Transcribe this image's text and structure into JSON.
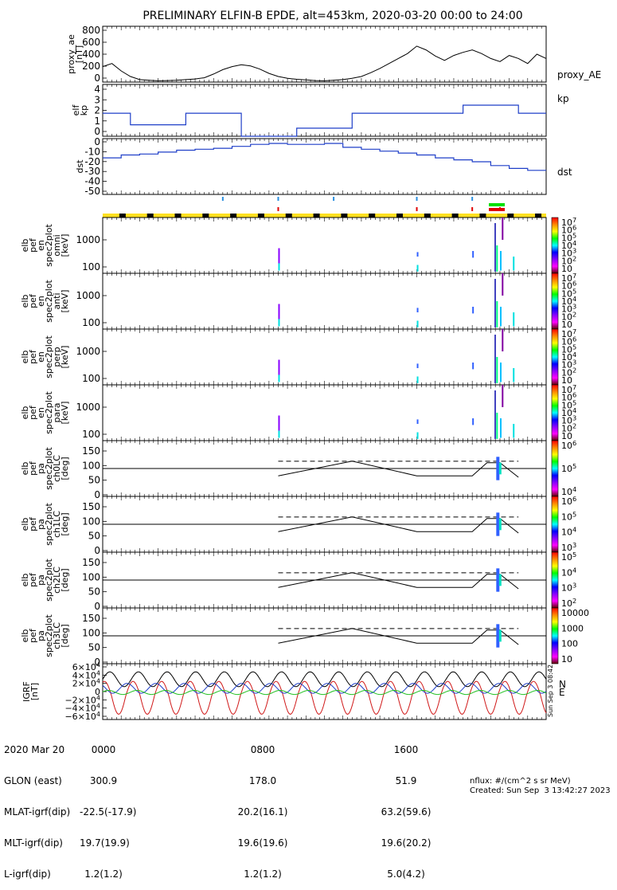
{
  "title": "PRELIMINARY ELFIN-B EPDE, alt=453km, 2020-03-20 00:00 to 24:00",
  "colors": {
    "line_black": "#000000",
    "line_blue": "#1f3fc8",
    "line_red": "#d01818",
    "line_green": "#20c020",
    "bar_yellow": "#ffe020",
    "bar_black": "#000000",
    "marker_blue": "#2a8fe0",
    "marker_red": "#e00000",
    "marker_green": "#00e000"
  },
  "chart_data": [
    {
      "name": "proxy_ae",
      "type": "line",
      "ylabel": "proxy_ae\n[nT]",
      "yticks": [
        "800",
        "600",
        "400",
        "200",
        "0"
      ],
      "ylim": [
        0,
        900
      ],
      "legend": "proxy_AE",
      "x_hours": [
        0,
        0.5,
        1,
        1.5,
        2,
        2.5,
        3,
        3.5,
        4,
        4.5,
        5,
        5.5,
        6,
        6.5,
        7,
        7.5,
        8,
        8.5,
        9,
        9.5,
        10,
        10.5,
        11,
        11.5,
        12,
        12.5,
        13,
        13.5,
        14,
        14.5,
        15,
        15.5,
        16,
        16.5,
        17,
        17.5,
        18,
        18.5,
        19,
        19.5,
        20,
        20.5,
        21,
        21.5,
        22,
        22.5,
        23,
        23.5,
        24
      ],
      "values": [
        250,
        300,
        180,
        90,
        40,
        30,
        20,
        25,
        30,
        40,
        50,
        70,
        130,
        200,
        250,
        280,
        260,
        210,
        140,
        90,
        60,
        45,
        35,
        25,
        20,
        30,
        40,
        60,
        90,
        150,
        220,
        300,
        380,
        460,
        580,
        520,
        420,
        350,
        430,
        480,
        520,
        460,
        380,
        330,
        430,
        380,
        300,
        450,
        380
      ]
    },
    {
      "name": "kp",
      "type": "step",
      "ylabel": "elf\nkp",
      "yticks": [
        "4",
        "3",
        "2",
        "1",
        "0"
      ],
      "ylim": [
        0,
        4.5
      ],
      "legend": "kp",
      "x_hours": [
        0,
        1.5,
        4.5,
        7.5,
        10.5,
        13.5,
        19.5,
        22.5,
        24
      ],
      "values": [
        2,
        1,
        2,
        0,
        0.7,
        2,
        2.7,
        2
      ]
    },
    {
      "name": "dst",
      "type": "step",
      "ylabel": "dst",
      "yticks": [
        "0",
        "-10",
        "-20",
        "-30",
        "-40",
        "-50"
      ],
      "ylim": [
        -55,
        3
      ],
      "legend": "dst",
      "x_hours": [
        0,
        1,
        2,
        3,
        4,
        5,
        6,
        7,
        8,
        9,
        10,
        11,
        12,
        13,
        14,
        15,
        16,
        17,
        18,
        19,
        20,
        21,
        22,
        23,
        24
      ],
      "values": [
        -17,
        -14,
        -13,
        -11,
        -9,
        -8,
        -7,
        -5,
        -3,
        -2,
        -3,
        -3,
        -2,
        -6,
        -8,
        -10,
        -12,
        -14,
        -17,
        -19,
        -21,
        -25,
        -28,
        -30
      ]
    },
    {
      "name": "spec_omni",
      "type": "heatmap",
      "ylabel": "elb\npef\nen\nspec2plot\nomni\n[keV]",
      "yticks": [
        "1000",
        "100"
      ],
      "cbar_label": "nflux",
      "cbar_ticks": [
        "10^7",
        "10^6",
        "10^5",
        "10^4",
        "10^3",
        "10^2",
        "10"
      ]
    },
    {
      "name": "spec_anti",
      "type": "heatmap",
      "ylabel": "elb\npef\nen\nspec2plot\nanti\n[keV]",
      "yticks": [
        "1000",
        "100"
      ],
      "cbar_label": "nflux",
      "cbar_ticks": [
        "10^7",
        "10^6",
        "10^5",
        "10^4",
        "10^3",
        "10^2",
        "10"
      ]
    },
    {
      "name": "spec_perp",
      "type": "heatmap",
      "ylabel": "elb\npef\nen\nspec2plot\nperp\n[keV]",
      "yticks": [
        "1000",
        "100"
      ],
      "cbar_label": "nflux",
      "cbar_ticks": [
        "10^7",
        "10^6",
        "10^5",
        "10^4",
        "10^3",
        "10^2",
        "10"
      ]
    },
    {
      "name": "spec_para",
      "type": "heatmap",
      "ylabel": "elb\npef\nen\nspec2plot\npara\n[keV]",
      "yticks": [
        "1000",
        "100"
      ],
      "cbar_label": "nflux",
      "cbar_ticks": [
        "10^7",
        "10^6",
        "10^5",
        "10^4",
        "10^3",
        "10^2",
        "10"
      ]
    },
    {
      "name": "pa_ch0",
      "type": "heatmap",
      "ylabel": "elb\npef\npa\nspec2plot\nch0LC\n[deg]",
      "yticks": [
        "150",
        "100",
        "50",
        "0"
      ],
      "cbar_label": "nflux",
      "cbar_ticks": [
        "10^6",
        "10^5",
        "10^4"
      ]
    },
    {
      "name": "pa_ch1",
      "type": "heatmap",
      "ylabel": "elb\npef\npa\nspec2plot\nch1LC\n[deg]",
      "yticks": [
        "150",
        "100",
        "50",
        "0"
      ],
      "cbar_label": "nflux",
      "cbar_ticks": [
        "10^6",
        "10^5",
        "10^4",
        "10^3"
      ]
    },
    {
      "name": "pa_ch2",
      "type": "heatmap",
      "ylabel": "elb\npef\npa\nspec2plot\nch2LC\n[deg]",
      "yticks": [
        "150",
        "100",
        "50",
        "0"
      ],
      "cbar_label": "nflux",
      "cbar_ticks": [
        "10^5",
        "10^4",
        "10^3",
        "10^2"
      ]
    },
    {
      "name": "pa_ch3",
      "type": "heatmap",
      "ylabel": "elb\npef\npa\nspec2plot\nch3LC\n[deg]",
      "yticks": [
        "150",
        "100",
        "50",
        "0"
      ],
      "cbar_label": "nflux",
      "cbar_ticks": [
        "10000",
        "1000",
        "100",
        "10"
      ]
    },
    {
      "name": "igrf",
      "type": "line",
      "ylabel": "IGRF\n[nT]",
      "yticks": [
        "6×10^4",
        "4×10^4",
        "2×10^4",
        "0",
        "−2×10^4",
        "−4×10^4",
        "−6×10^4"
      ],
      "ylim": [
        -60000,
        60000
      ],
      "legend": [
        "N",
        "E"
      ]
    }
  ],
  "footer": {
    "row_labels": [
      "2020 Mar 20",
      "GLON (east)",
      "MLAT-igrf(dip)",
      "MLT-igrf(dip)",
      "L-igrf(dip)"
    ],
    "columns": [
      {
        "time": "0000",
        "values": [
          "300.9",
          "-22.5(-17.9)",
          "19.7(19.9)",
          "1.2(1.2)"
        ]
      },
      {
        "time": "0800",
        "values": [
          "178.0",
          "20.2(16.1)",
          "19.6(19.6)",
          "1.2(1.2)"
        ]
      },
      {
        "time": "1600",
        "values": [
          "51.9",
          "63.2(59.6)",
          "19.6(20.2)",
          "5.0(4.2)"
        ]
      }
    ],
    "units_note": "nflux: #/(cm^2 s sr MeV)",
    "created": "Created: Sun Sep  3 13:42:27 2023",
    "side_stamp": "Sun Sep  3 08:42"
  }
}
